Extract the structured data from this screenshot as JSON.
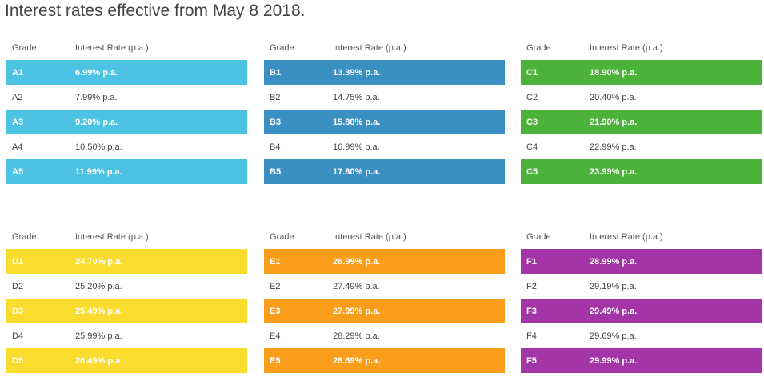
{
  "title": "Interest rates effective from May 8 2018.",
  "header": {
    "grade": "Grade",
    "rate": "Interest Rate (p.a.)"
  },
  "tables": [
    {
      "color": "#4cc3e3",
      "rows": [
        [
          "A1",
          "6.99% p.a."
        ],
        [
          "A2",
          "7.99% p.a."
        ],
        [
          "A3",
          "9.20% p.a."
        ],
        [
          "A4",
          "10.50% p.a."
        ],
        [
          "A5",
          "11.99% p.a."
        ]
      ]
    },
    {
      "color": "#3a8fc3",
      "rows": [
        [
          "B1",
          "13.39% p.a."
        ],
        [
          "B2",
          "14.75% p.a."
        ],
        [
          "B3",
          "15.80% p.a."
        ],
        [
          "B4",
          "16.99% p.a."
        ],
        [
          "B5",
          "17.80% p.a."
        ]
      ]
    },
    {
      "color": "#4bb33a",
      "rows": [
        [
          "C1",
          "18.90% p.a."
        ],
        [
          "C2",
          "20.40% p.a."
        ],
        [
          "C3",
          "21.90% p.a."
        ],
        [
          "C4",
          "22.99% p.a."
        ],
        [
          "C5",
          "23.99% p.a."
        ]
      ]
    },
    {
      "color": "#f9dc2e",
      "rows": [
        [
          "D1",
          "24.70% p.a."
        ],
        [
          "D2",
          "25.20% p.a."
        ],
        [
          "D3",
          "25.49% p.a."
        ],
        [
          "D4",
          "25.99% p.a."
        ],
        [
          "D5",
          "26.49% p.a."
        ]
      ]
    },
    {
      "color": "#f99d1b",
      "rows": [
        [
          "E1",
          "26.99% p.a."
        ],
        [
          "E2",
          "27.49% p.a."
        ],
        [
          "E3",
          "27.99% p.a."
        ],
        [
          "E4",
          "28.29% p.a."
        ],
        [
          "E5",
          "28.69% p.a."
        ]
      ]
    },
    {
      "color": "#a335a6",
      "rows": [
        [
          "F1",
          "28.99% p.a."
        ],
        [
          "F2",
          "29.19% p.a."
        ],
        [
          "F3",
          "29.49% p.a."
        ],
        [
          "F4",
          "29.69% p.a."
        ],
        [
          "F5",
          "29.99% p.a."
        ]
      ]
    }
  ]
}
